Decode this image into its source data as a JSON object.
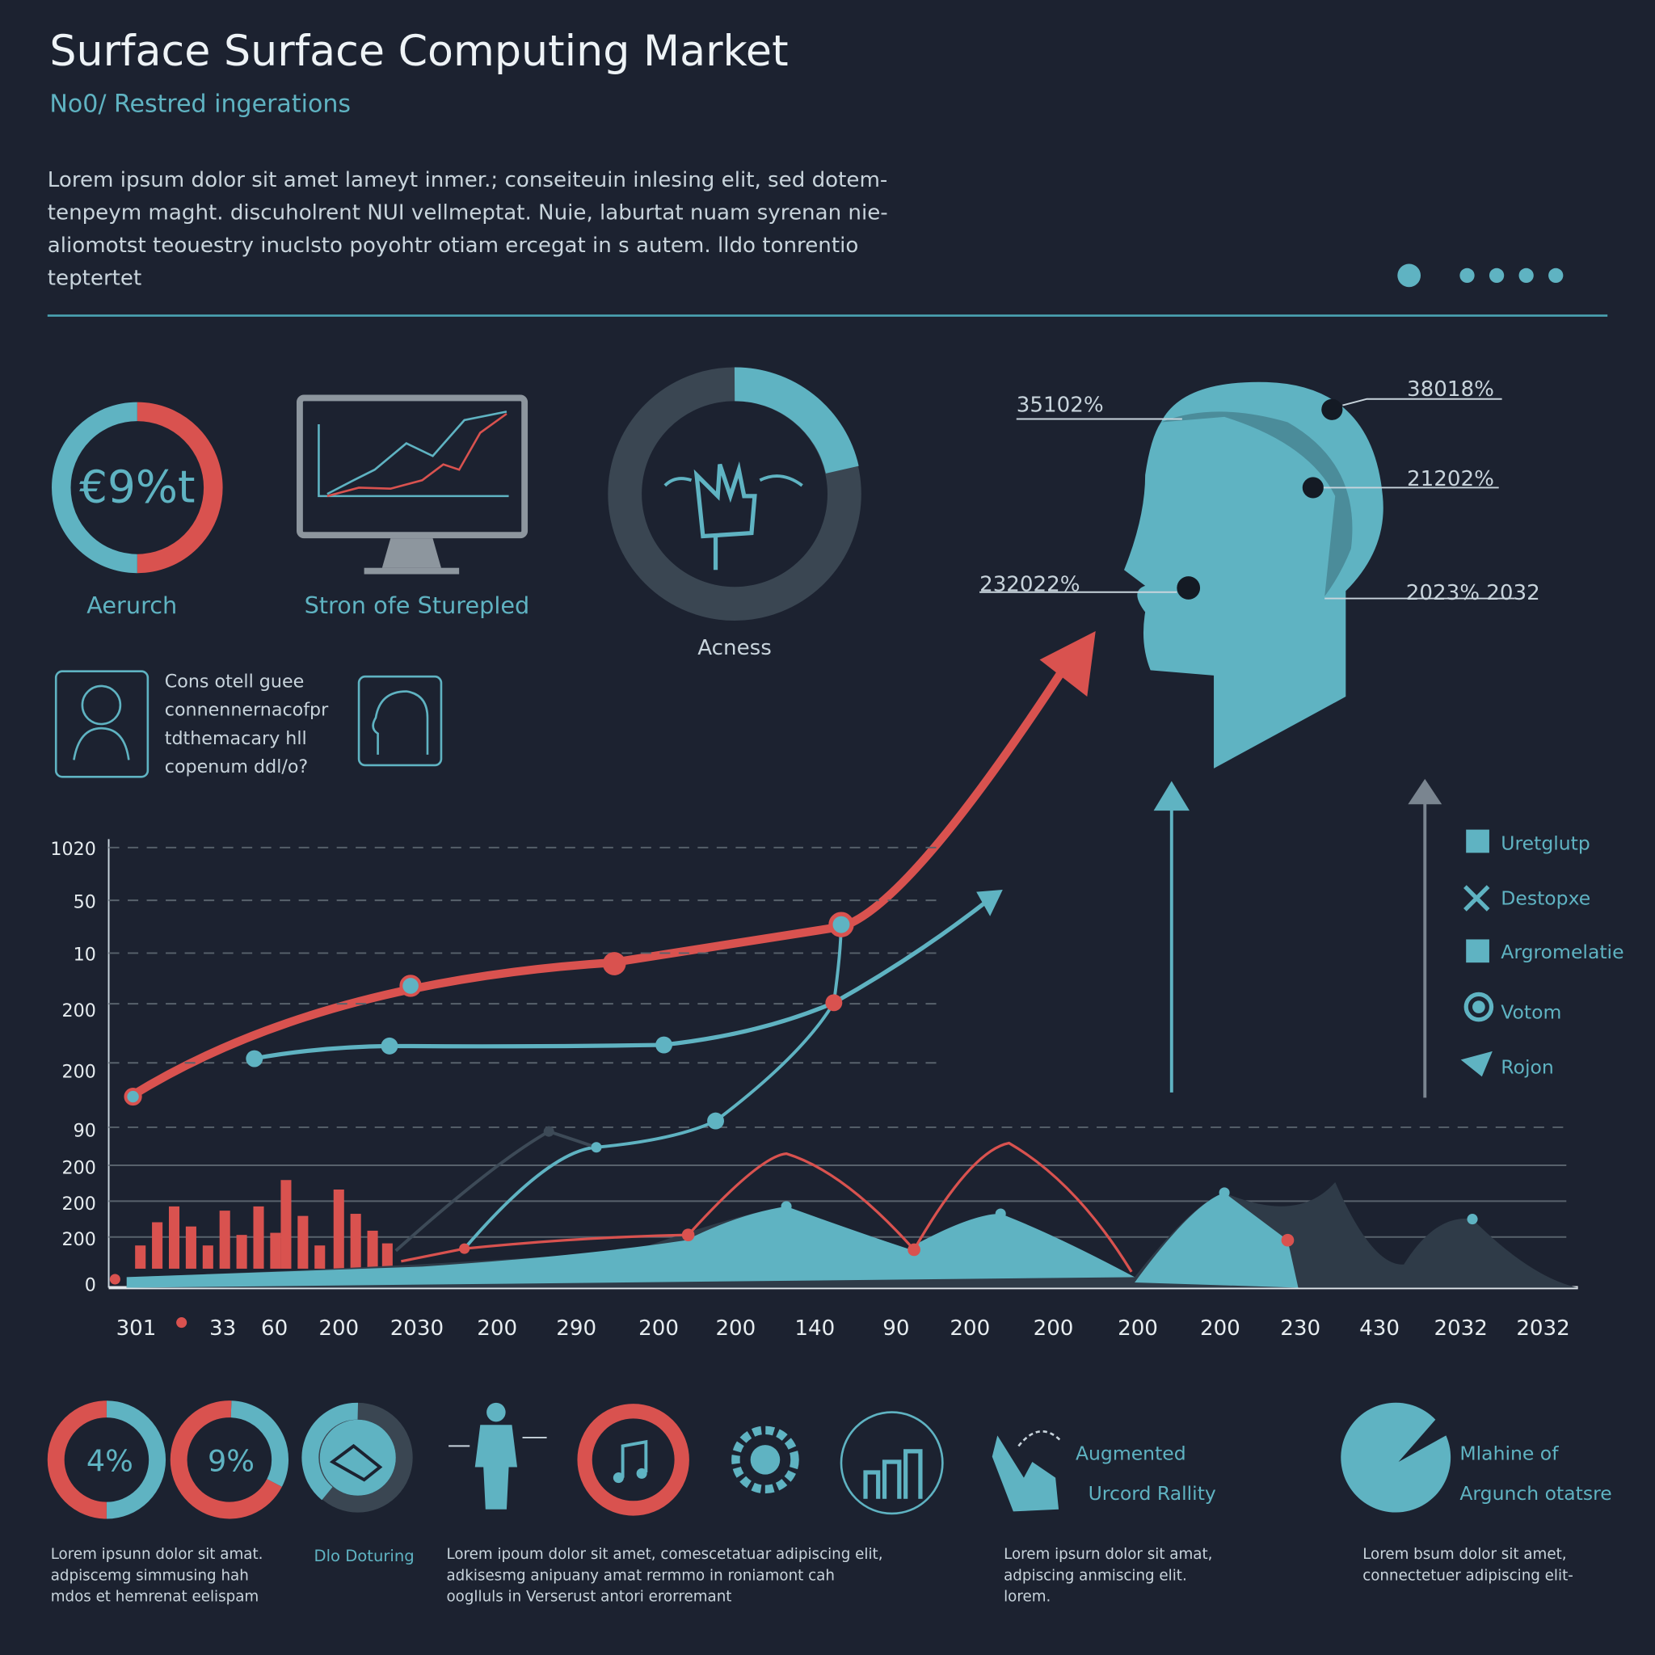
{
  "header": {
    "title": "Surface Surface Computing Market",
    "subtitle": "No0/ Restred ingerations",
    "intro": [
      "Lorem ipsum dolor sit amet lameyt inmer.; conseiteuin inlesing elit, sed dotem-",
      "tenpeym maght. discuholrent NUI vellmeptat. Nuie, laburtat nuam syrenan nie-",
      "aliomotst teouestry inuclsto poyohtr otiam ercegat in s autem. lldo tonrentio",
      "teptertet"
    ]
  },
  "stats": {
    "ring_value": "€9%t",
    "ring_label": "Aerurch",
    "monitor_label": "Stron ofe Sturepled",
    "donut_label": "Acness"
  },
  "head_callouts": [
    "35102%",
    "38018%",
    "21202%",
    "232022%",
    "2023% 2032"
  ],
  "note": [
    "Cons otell guee",
    "connennernacofpr",
    "tdthemacary hll",
    "copenum ddl/o?"
  ],
  "chart": {
    "y_labels": [
      "1020",
      "50",
      "10",
      "200",
      "200",
      "90",
      "200",
      "200",
      "200",
      "0"
    ],
    "x_labels": [
      "301",
      "33",
      "60",
      "200",
      "2030",
      "200",
      "290",
      "200",
      "200",
      "140",
      "90",
      "200",
      "200",
      "200",
      "200",
      "230",
      "430",
      "2032",
      "2032"
    ],
    "legend": [
      "Uretglutp",
      "Destopxe",
      "Argromelatie",
      "Votom",
      "Rojon"
    ]
  },
  "bottom": {
    "rings": [
      "4%",
      "9%"
    ],
    "caption": "Dlo Doturing",
    "ar": [
      "Augmented",
      "Urcord Rallity"
    ],
    "ml": [
      "Mlahine of",
      "Argunch otatsre"
    ],
    "paragraphs": [
      [
        "Lorem ipsunn dolor sit amat.",
        "adpiscemg simmusing hah",
        "mdos et hemrenat eelispam"
      ],
      [
        "Lorem ipoum dolor sit amet, comescetatuar adipiscing elit,",
        "adkisesmg anipuany amat rermmo in roniamont cah",
        "ooglluls in Verserust antori erorremant"
      ],
      [
        "Lorem ipsurn dolor sit amat,",
        "adpiscing anmiscing elit.",
        "lorem."
      ],
      [
        "Lorem bsum dolor sit amet,",
        "connectetuer adipiscing elit-"
      ]
    ]
  }
}
